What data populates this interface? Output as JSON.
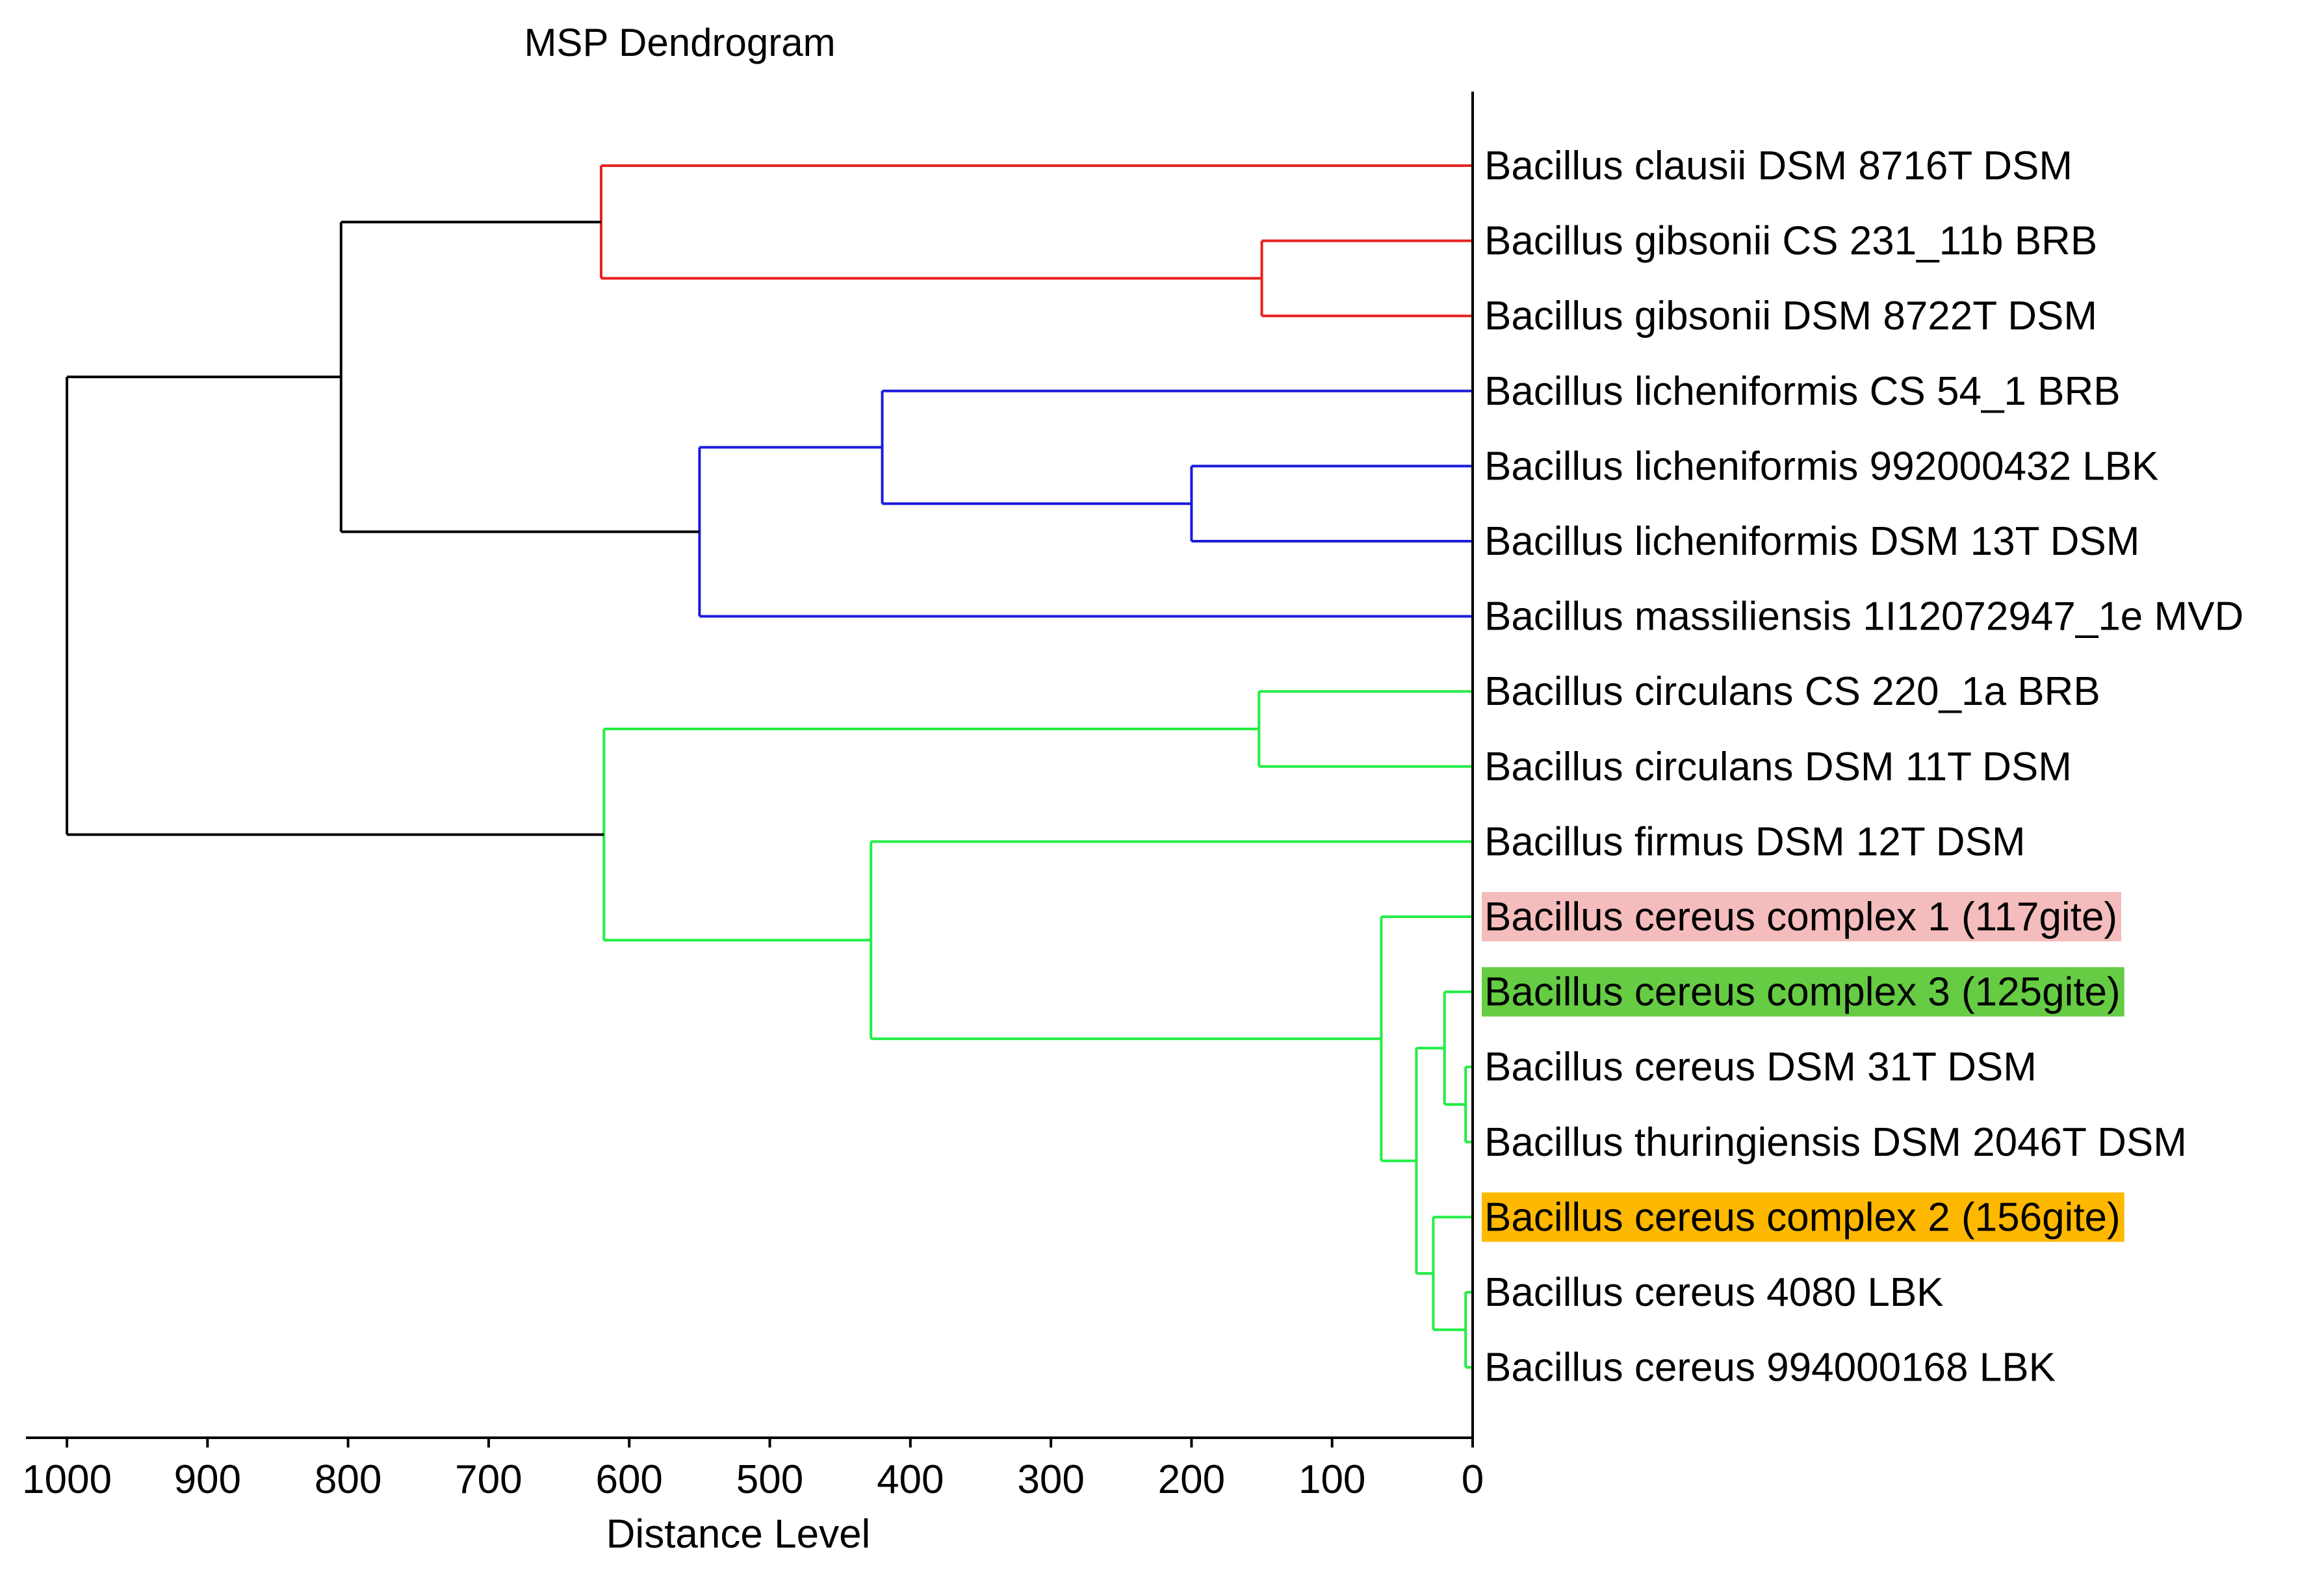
{
  "chart_data": {
    "type": "dendrogram",
    "title": "MSP Dendrogram",
    "xlabel": "Distance Level",
    "xlim": [
      1000,
      0
    ],
    "xticks": [
      1000,
      900,
      800,
      700,
      600,
      500,
      400,
      300,
      200,
      100,
      0
    ],
    "leaves": [
      {
        "label": "Bacillus clausii DSM 8716T DSM",
        "highlight": null
      },
      {
        "label": "Bacillus gibsonii CS 231_11b BRB",
        "highlight": null
      },
      {
        "label": "Bacillus gibsonii DSM 8722T DSM",
        "highlight": null
      },
      {
        "label": "Bacillus licheniformis CS 54_1 BRB",
        "highlight": null
      },
      {
        "label": "Bacillus licheniformis 992000432 LBK",
        "highlight": null
      },
      {
        "label": "Bacillus licheniformis DSM 13T DSM",
        "highlight": null
      },
      {
        "label": "Bacillus massiliensis 1I12072947_1e MVD",
        "highlight": null
      },
      {
        "label": "Bacillus circulans CS 220_1a BRB",
        "highlight": null
      },
      {
        "label": "Bacillus circulans DSM 11T DSM",
        "highlight": null
      },
      {
        "label": "Bacillus firmus DSM 12T DSM",
        "highlight": null
      },
      {
        "label": "Bacillus cereus complex 1 (117gite)",
        "highlight": "#f4bcbc"
      },
      {
        "label": "Bacillus cereus complex 3 (125gite)",
        "highlight": "#66cc44"
      },
      {
        "label": "Bacillus cereus DSM 31T DSM",
        "highlight": null
      },
      {
        "label": "Bacillus thuringiensis DSM 2046T DSM",
        "highlight": null
      },
      {
        "label": "Bacillus cereus complex 2 (156gite)",
        "highlight": "#ffb800"
      },
      {
        "label": "Bacillus cereus 4080 LBK",
        "highlight": null
      },
      {
        "label": "Bacillus cereus 994000168 LBK",
        "highlight": null
      }
    ],
    "clusters": [
      {
        "id": "gib",
        "left": 1,
        "right": 2,
        "distance": 150,
        "color": "#e8211e"
      },
      {
        "id": "red",
        "left": 0,
        "right": "gib",
        "distance": 620,
        "color": "#e8211e"
      },
      {
        "id": "lic2",
        "left": 4,
        "right": 5,
        "distance": 200,
        "color": "#1a1adb"
      },
      {
        "id": "lic3",
        "left": 3,
        "right": "lic2",
        "distance": 420,
        "color": "#1a1adb"
      },
      {
        "id": "blue",
        "left": "lic3",
        "right": 6,
        "distance": 550,
        "color": "#1a1adb"
      },
      {
        "id": "top",
        "left": "red",
        "right": "blue",
        "distance": 805,
        "color": "#000000"
      },
      {
        "id": "circ",
        "left": 7,
        "right": 8,
        "distance": 152,
        "color": "#22ee44"
      },
      {
        "id": "cer_a",
        "left": 12,
        "right": 13,
        "distance": 5,
        "color": "#22ee44"
      },
      {
        "id": "cer_b",
        "left": 11,
        "right": "cer_a",
        "distance": 20,
        "color": "#22ee44"
      },
      {
        "id": "cer_c",
        "left": 15,
        "right": 16,
        "distance": 5,
        "color": "#22ee44"
      },
      {
        "id": "cer_d",
        "left": 14,
        "right": "cer_c",
        "distance": 28,
        "color": "#22ee44"
      },
      {
        "id": "cer_e",
        "left": "cer_b",
        "right": "cer_d",
        "distance": 40,
        "color": "#22ee44"
      },
      {
        "id": "cer_f",
        "left": 10,
        "right": "cer_e",
        "distance": 65,
        "color": "#22ee44"
      },
      {
        "id": "firm",
        "left": 9,
        "right": "cer_f",
        "distance": 428,
        "color": "#22ee44"
      },
      {
        "id": "green",
        "left": "circ",
        "right": "firm",
        "distance": 618,
        "color": "#22ee44"
      },
      {
        "id": "root",
        "left": "top",
        "right": "green",
        "distance": 1000,
        "color": "#000000"
      }
    ]
  }
}
